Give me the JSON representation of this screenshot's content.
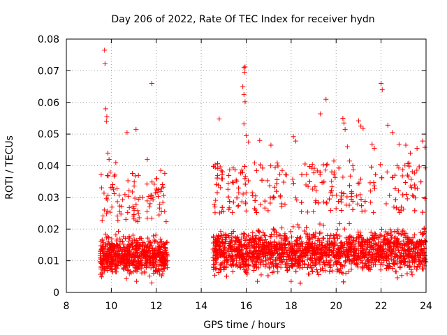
{
  "chart_data": {
    "type": "scatter",
    "title": "Day 206 of 2022, Rate Of TEC Index for receiver hydn",
    "xlabel": "GPS time / hours",
    "ylabel": "ROTI / TECUs",
    "xlim": [
      8,
      24
    ],
    "ylim": [
      0,
      0.08
    ],
    "x_ticks": [
      "8",
      "10",
      "12",
      "14",
      "16",
      "18",
      "20",
      "22",
      "24"
    ],
    "y_ticks": [
      "0",
      "0.01",
      "0.02",
      "0.03",
      "0.04",
      "0.05",
      "0.06",
      "0.07",
      "0.08"
    ],
    "grid": true,
    "marker": "+",
    "color": "#ff0000",
    "segments": [
      {
        "x_start": 9.5,
        "x_end": 12.5,
        "typical_range": [
          0.005,
          0.022
        ]
      },
      {
        "x_start": 14.5,
        "x_end": 24.0,
        "typical_range": [
          0.005,
          0.025
        ]
      }
    ],
    "series": [
      {
        "name": "ROTI",
        "points": [
          [
            9.7,
            0.0765
          ],
          [
            9.72,
            0.0722
          ],
          [
            9.75,
            0.058
          ],
          [
            9.8,
            0.0555
          ],
          [
            9.78,
            0.054
          ],
          [
            9.85,
            0.044
          ],
          [
            9.9,
            0.042
          ],
          [
            9.95,
            0.038
          ],
          [
            10.2,
            0.041
          ],
          [
            10.7,
            0.0505
          ],
          [
            11.1,
            0.0515
          ],
          [
            11.6,
            0.042
          ],
          [
            11.8,
            0.066
          ],
          [
            12.2,
            0.0385
          ],
          [
            14.8,
            0.0548
          ],
          [
            15.2,
            0.0345
          ],
          [
            15.9,
            0.071
          ],
          [
            15.95,
            0.0712
          ],
          [
            15.92,
            0.0695
          ],
          [
            15.85,
            0.065
          ],
          [
            15.9,
            0.0625
          ],
          [
            15.95,
            0.0602
          ],
          [
            15.9,
            0.0532
          ],
          [
            16.0,
            0.0495
          ],
          [
            16.1,
            0.0475
          ],
          [
            16.6,
            0.048
          ],
          [
            17.1,
            0.0465
          ],
          [
            17.6,
            0.0385
          ],
          [
            18.1,
            0.0492
          ],
          [
            18.2,
            0.0478
          ],
          [
            19.3,
            0.0564
          ],
          [
            19.55,
            0.061
          ],
          [
            19.6,
            0.0405
          ],
          [
            19.9,
            0.0415
          ],
          [
            20.3,
            0.055
          ],
          [
            20.35,
            0.0535
          ],
          [
            20.4,
            0.0515
          ],
          [
            20.5,
            0.046
          ],
          [
            20.6,
            0.0415
          ],
          [
            21.0,
            0.0542
          ],
          [
            21.1,
            0.0525
          ],
          [
            21.2,
            0.0518
          ],
          [
            21.6,
            0.0468
          ],
          [
            21.7,
            0.0455
          ],
          [
            22.0,
            0.066
          ],
          [
            22.05,
            0.064
          ],
          [
            22.3,
            0.0528
          ],
          [
            22.5,
            0.0505
          ],
          [
            22.8,
            0.0468
          ],
          [
            23.1,
            0.0465
          ],
          [
            23.3,
            0.044
          ],
          [
            23.6,
            0.0455
          ],
          [
            23.85,
            0.0478
          ],
          [
            23.95,
            0.0458
          ],
          [
            9.6,
            0.013
          ],
          [
            9.9,
            0.011
          ],
          [
            10.4,
            0.014
          ],
          [
            10.8,
            0.012
          ],
          [
            11.3,
            0.01
          ],
          [
            11.9,
            0.011
          ],
          [
            12.3,
            0.009
          ],
          [
            14.7,
            0.012
          ],
          [
            15.5,
            0.013
          ],
          [
            16.5,
            0.011
          ],
          [
            17.5,
            0.012
          ],
          [
            18.5,
            0.01
          ],
          [
            19.5,
            0.013
          ],
          [
            20.5,
            0.011
          ],
          [
            21.5,
            0.012
          ],
          [
            22.5,
            0.013
          ],
          [
            23.5,
            0.011
          ],
          [
            11.8,
            0.003
          ],
          [
            18.0,
            0.0035
          ],
          [
            16.5,
            0.0035
          ]
        ]
      }
    ]
  }
}
